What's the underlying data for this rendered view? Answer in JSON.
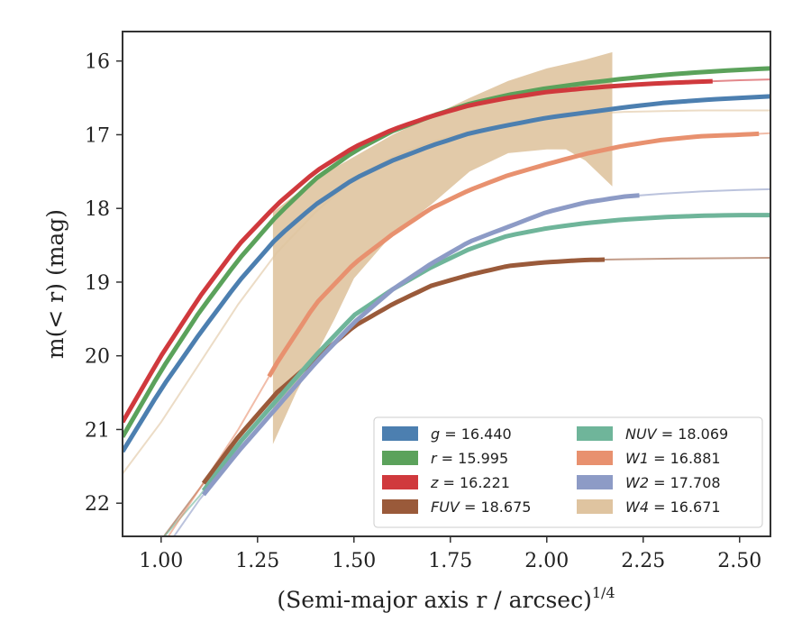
{
  "chart_data": {
    "type": "line",
    "xlabel": "(Semi-major axis r / arcsec)",
    "xlabel_sup": "1/4",
    "ylabel": "m(< r) (mag)",
    "xlim": [
      0.9,
      2.58
    ],
    "ylim": [
      22.45,
      15.6
    ],
    "y_inverted": true,
    "x_ticks": [
      1.0,
      1.25,
      1.5,
      1.75,
      2.0,
      2.25,
      2.5
    ],
    "x_tick_labels": [
      "1.00",
      "1.25",
      "1.50",
      "1.75",
      "2.00",
      "2.25",
      "2.50"
    ],
    "y_ticks": [
      16,
      17,
      18,
      19,
      20,
      21,
      22
    ],
    "y_tick_labels": [
      "16",
      "17",
      "18",
      "19",
      "20",
      "21",
      "22"
    ],
    "grid": false,
    "legend_position": "bottom-right",
    "series": [
      {
        "label_var": "g",
        "label_value": "= 16.440",
        "color": "#4c7fb0",
        "model": [
          [
            0.9,
            21.3
          ],
          [
            1.0,
            20.45
          ],
          [
            1.1,
            19.7
          ],
          [
            1.2,
            19.0
          ],
          [
            1.3,
            18.4
          ],
          [
            1.4,
            17.95
          ],
          [
            1.5,
            17.6
          ],
          [
            1.6,
            17.35
          ],
          [
            1.7,
            17.15
          ],
          [
            1.8,
            16.98
          ],
          [
            1.9,
            16.87
          ],
          [
            2.0,
            16.77
          ],
          [
            2.1,
            16.7
          ],
          [
            2.2,
            16.63
          ],
          [
            2.3,
            16.57
          ],
          [
            2.4,
            16.53
          ],
          [
            2.5,
            16.5
          ],
          [
            2.58,
            16.48
          ]
        ],
        "data_x": [
          0.9,
          2.58
        ]
      },
      {
        "label_var": "r",
        "label_value": "= 15.995",
        "color": "#5ba25b",
        "model": [
          [
            0.9,
            21.1
          ],
          [
            1.0,
            20.2
          ],
          [
            1.1,
            19.4
          ],
          [
            1.2,
            18.7
          ],
          [
            1.3,
            18.1
          ],
          [
            1.4,
            17.6
          ],
          [
            1.5,
            17.23
          ],
          [
            1.6,
            16.95
          ],
          [
            1.7,
            16.75
          ],
          [
            1.8,
            16.58
          ],
          [
            1.9,
            16.46
          ],
          [
            2.0,
            16.37
          ],
          [
            2.1,
            16.3
          ],
          [
            2.2,
            16.24
          ],
          [
            2.3,
            16.19
          ],
          [
            2.4,
            16.15
          ],
          [
            2.5,
            16.12
          ],
          [
            2.58,
            16.1
          ]
        ],
        "data_x": [
          0.9,
          2.58
        ]
      },
      {
        "label_var": "z",
        "label_value": "= 16.221",
        "color": "#d0393d",
        "model": [
          [
            0.9,
            20.9
          ],
          [
            1.0,
            20.0
          ],
          [
            1.1,
            19.2
          ],
          [
            1.2,
            18.5
          ],
          [
            1.3,
            17.95
          ],
          [
            1.4,
            17.5
          ],
          [
            1.5,
            17.17
          ],
          [
            1.6,
            16.93
          ],
          [
            1.7,
            16.75
          ],
          [
            1.8,
            16.6
          ],
          [
            1.9,
            16.5
          ],
          [
            2.0,
            16.42
          ],
          [
            2.1,
            16.37
          ],
          [
            2.2,
            16.33
          ],
          [
            2.3,
            16.3
          ],
          [
            2.4,
            16.28
          ],
          [
            2.5,
            16.26
          ],
          [
            2.58,
            16.25
          ]
        ],
        "data_x": [
          0.9,
          2.43
        ]
      },
      {
        "label_var": "FUV",
        "label_value": "= 18.675",
        "color": "#9a5a3a",
        "model": [
          [
            0.9,
            23.2
          ],
          [
            1.0,
            22.5
          ],
          [
            1.1,
            21.8
          ],
          [
            1.2,
            21.1
          ],
          [
            1.3,
            20.5
          ],
          [
            1.4,
            20.05
          ],
          [
            1.5,
            19.6
          ],
          [
            1.6,
            19.3
          ],
          [
            1.7,
            19.05
          ],
          [
            1.8,
            18.9
          ],
          [
            1.9,
            18.78
          ],
          [
            2.0,
            18.73
          ],
          [
            2.1,
            18.7
          ],
          [
            2.2,
            18.69
          ],
          [
            2.35,
            18.68
          ],
          [
            2.58,
            18.67
          ]
        ],
        "data_x": [
          1.11,
          2.15
        ]
      },
      {
        "label_var": "NUV",
        "label_value": "= 18.069",
        "color": "#6fb59a",
        "model": [
          [
            0.9,
            23.2
          ],
          [
            1.0,
            22.5
          ],
          [
            1.1,
            21.9
          ],
          [
            1.2,
            21.2
          ],
          [
            1.3,
            20.6
          ],
          [
            1.4,
            20.0
          ],
          [
            1.5,
            19.45
          ],
          [
            1.6,
            19.1
          ],
          [
            1.7,
            18.8
          ],
          [
            1.8,
            18.55
          ],
          [
            1.9,
            18.37
          ],
          [
            2.0,
            18.27
          ],
          [
            2.1,
            18.2
          ],
          [
            2.2,
            18.15
          ],
          [
            2.3,
            18.12
          ],
          [
            2.4,
            18.1
          ],
          [
            2.5,
            18.09
          ],
          [
            2.58,
            18.09
          ]
        ],
        "data_x": [
          1.11,
          2.58
        ]
      },
      {
        "label_var": "W1",
        "label_value": "= 16.881",
        "color": "#e8916f",
        "model": [
          [
            0.9,
            23.4
          ],
          [
            1.0,
            22.6
          ],
          [
            1.1,
            21.8
          ],
          [
            1.2,
            21.0
          ],
          [
            1.3,
            20.1
          ],
          [
            1.4,
            19.3
          ],
          [
            1.5,
            18.75
          ],
          [
            1.6,
            18.35
          ],
          [
            1.7,
            18.0
          ],
          [
            1.8,
            17.75
          ],
          [
            1.9,
            17.55
          ],
          [
            2.0,
            17.4
          ],
          [
            2.1,
            17.26
          ],
          [
            2.2,
            17.15
          ],
          [
            2.3,
            17.07
          ],
          [
            2.4,
            17.02
          ],
          [
            2.5,
            17.0
          ],
          [
            2.58,
            16.98
          ]
        ],
        "data_x": [
          1.28,
          2.55
        ]
      },
      {
        "label_var": "W2",
        "label_value": "= 17.708",
        "color": "#8d9bc6",
        "model": [
          [
            0.9,
            23.5
          ],
          [
            1.0,
            22.7
          ],
          [
            1.1,
            21.95
          ],
          [
            1.2,
            21.3
          ],
          [
            1.3,
            20.7
          ],
          [
            1.4,
            20.1
          ],
          [
            1.5,
            19.55
          ],
          [
            1.6,
            19.1
          ],
          [
            1.7,
            18.75
          ],
          [
            1.8,
            18.45
          ],
          [
            1.9,
            18.25
          ],
          [
            2.0,
            18.05
          ],
          [
            2.1,
            17.92
          ],
          [
            2.2,
            17.84
          ],
          [
            2.3,
            17.8
          ],
          [
            2.4,
            17.77
          ],
          [
            2.5,
            17.75
          ],
          [
            2.58,
            17.74
          ]
        ],
        "data_x": [
          1.11,
          2.24
        ]
      },
      {
        "label_var": "W4",
        "label_value": "= 16.671",
        "color": "#dfc4a0",
        "model": [
          [
            0.9,
            21.6
          ],
          [
            1.0,
            20.9
          ],
          [
            1.1,
            20.1
          ],
          [
            1.2,
            19.3
          ],
          [
            1.3,
            18.6
          ],
          [
            1.4,
            18.05
          ],
          [
            1.5,
            17.6
          ],
          [
            1.6,
            17.3
          ],
          [
            1.7,
            17.1
          ],
          [
            1.8,
            16.95
          ],
          [
            1.9,
            16.85
          ],
          [
            2.0,
            16.77
          ],
          [
            2.1,
            16.72
          ],
          [
            2.2,
            16.69
          ],
          [
            2.3,
            16.68
          ],
          [
            2.4,
            16.67
          ],
          [
            2.58,
            16.67
          ]
        ],
        "band_upper": [
          [
            1.29,
            18.05
          ],
          [
            1.4,
            17.6
          ],
          [
            1.5,
            17.3
          ],
          [
            1.6,
            17.0
          ],
          [
            1.7,
            16.75
          ],
          [
            1.8,
            16.5
          ],
          [
            1.9,
            16.27
          ],
          [
            2.0,
            16.1
          ],
          [
            2.1,
            15.98
          ],
          [
            2.17,
            15.88
          ]
        ],
        "band_lower": [
          [
            1.29,
            21.2
          ],
          [
            1.35,
            20.5
          ],
          [
            1.4,
            20.0
          ],
          [
            1.45,
            19.5
          ],
          [
            1.5,
            18.95
          ],
          [
            1.6,
            18.35
          ],
          [
            1.7,
            17.95
          ],
          [
            1.8,
            17.5
          ],
          [
            1.9,
            17.25
          ],
          [
            2.0,
            17.2
          ],
          [
            2.05,
            17.2
          ],
          [
            2.1,
            17.35
          ],
          [
            2.17,
            17.7
          ]
        ]
      }
    ]
  }
}
